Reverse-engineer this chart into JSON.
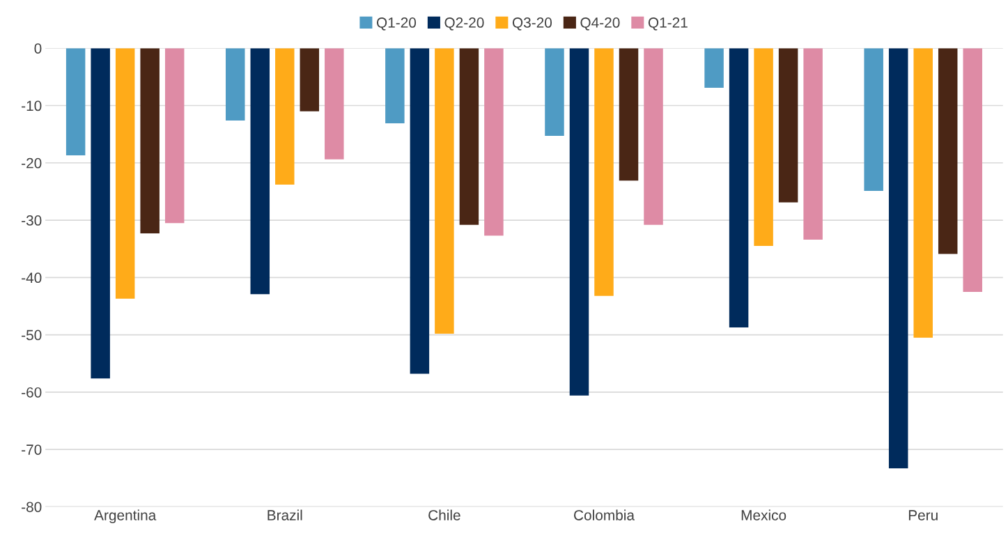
{
  "chart_data": {
    "type": "bar",
    "categories": [
      "Argentina",
      "Brazil",
      "Chile",
      "Colombia",
      "Mexico",
      "Peru"
    ],
    "series": [
      {
        "name": "Q1-20",
        "color": "#4f9bc4",
        "values": [
          -18.7,
          -12.6,
          -13.1,
          -15.3,
          -6.9,
          -24.9
        ]
      },
      {
        "name": "Q2-20",
        "color": "#002b5c",
        "values": [
          -57.6,
          -42.9,
          -56.8,
          -60.6,
          -48.7,
          -73.3
        ]
      },
      {
        "name": "Q3-20",
        "color": "#ffab19",
        "values": [
          -43.7,
          -23.8,
          -49.8,
          -43.2,
          -34.5,
          -50.5
        ]
      },
      {
        "name": "Q4-20",
        "color": "#4a2615",
        "values": [
          -32.3,
          -11.0,
          -30.8,
          -23.1,
          -26.9,
          -35.9
        ]
      },
      {
        "name": "Q1-21",
        "color": "#de8ba5",
        "values": [
          -30.5,
          -19.4,
          -32.7,
          -30.8,
          -33.4,
          -42.5
        ]
      }
    ],
    "ylim": [
      -80,
      0
    ],
    "yticks": [
      -80,
      -70,
      -60,
      -50,
      -40,
      -30,
      -20,
      -10,
      0
    ],
    "grid": "y",
    "legend": "top"
  }
}
